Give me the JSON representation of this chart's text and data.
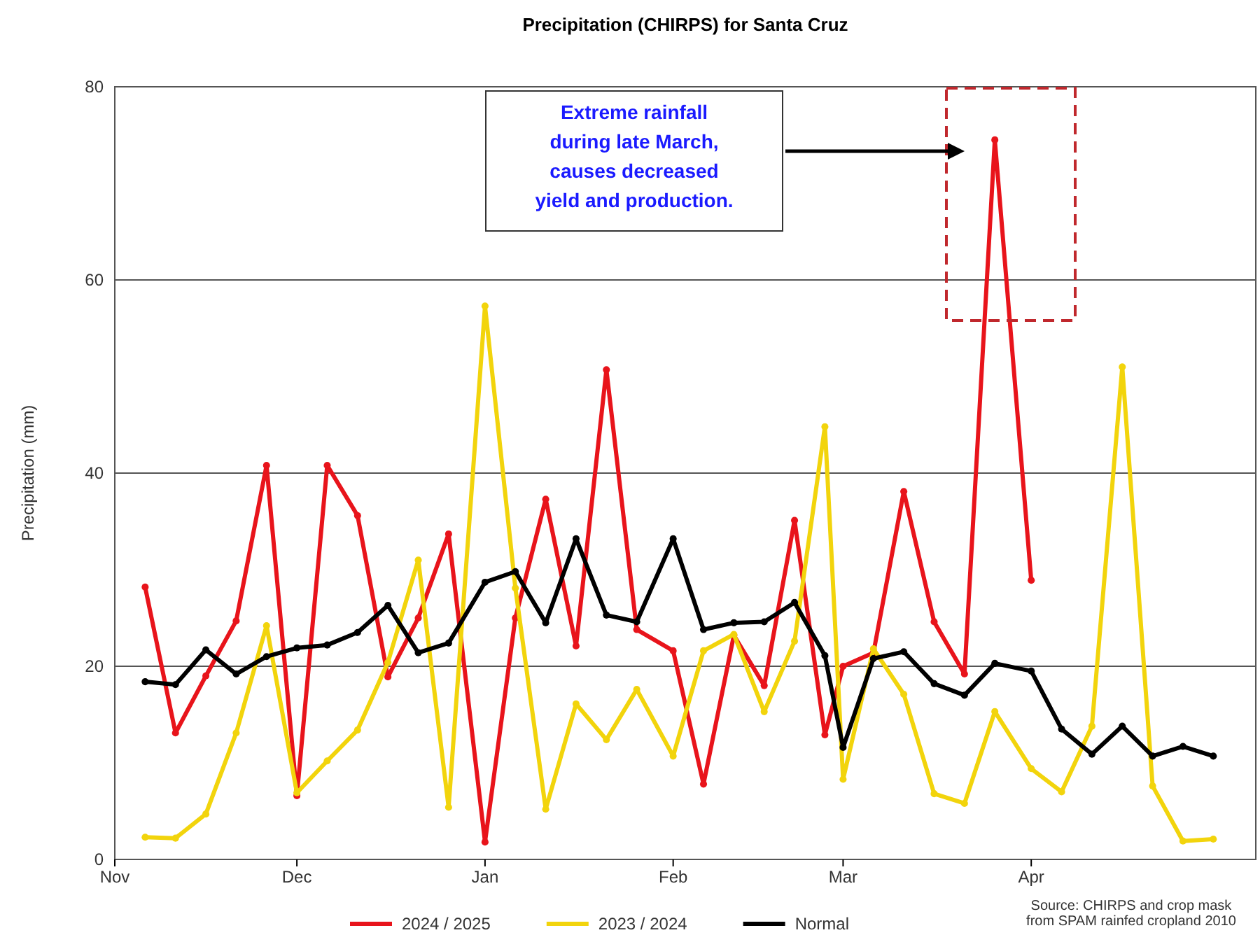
{
  "chart_data": {
    "type": "line",
    "title": "Precipitation (CHIRPS) for Santa Cruz",
    "ylabel": "Precipitation (mm)",
    "x": [
      "2024-11-06",
      "2024-11-11",
      "2024-11-16",
      "2024-11-21",
      "2024-11-26",
      "2024-12-01",
      "2024-12-06",
      "2024-12-11",
      "2024-12-16",
      "2024-12-21",
      "2024-12-26",
      "2025-01-01",
      "2025-01-06",
      "2025-01-11",
      "2025-01-16",
      "2025-01-21",
      "2025-01-26",
      "2025-02-01",
      "2025-02-06",
      "2025-02-11",
      "2025-02-16",
      "2025-02-21",
      "2025-02-26",
      "2025-03-01",
      "2025-03-06",
      "2025-03-11",
      "2025-03-16",
      "2025-03-21",
      "2025-03-26",
      "2025-04-01",
      "2025-04-06",
      "2025-04-11",
      "2025-04-16",
      "2025-04-21",
      "2025-04-26",
      "2025-05-01"
    ],
    "series": [
      {
        "name": "2024 / 2025",
        "color": "#e8141b",
        "values": [
          28.2,
          13.1,
          19,
          24.7,
          40.8,
          6.6,
          40.8,
          35.6,
          18.9,
          25,
          33.7,
          1.8,
          25,
          37.3,
          22.1,
          50.7,
          23.8,
          21.6,
          7.8,
          23.2,
          18.0,
          35.1,
          12.9,
          20.0,
          21.4,
          38.1,
          24.6,
          19.2,
          74.5,
          28.9,
          null,
          null,
          null,
          null,
          null,
          null
        ]
      },
      {
        "name": "2023 / 2024",
        "color": "#f2d40c",
        "values": [
          2.3,
          2.2,
          4.7,
          13.1,
          24.2,
          6.9,
          10.2,
          13.4,
          20.4,
          31.0,
          5.4,
          57.3,
          28.1,
          5.2,
          16.1,
          12.4,
          17.6,
          10.7,
          21.6,
          23.3,
          15.3,
          22.6,
          44.8,
          8.3,
          21.8,
          17.1,
          6.8,
          5.8,
          15.3,
          9.4,
          7.0,
          13.8,
          51.0,
          7.6,
          1.9,
          2.1
        ]
      },
      {
        "name": "Normal",
        "color": "#000000",
        "values": [
          18.4,
          18.1,
          21.7,
          19.2,
          21.0,
          21.9,
          22.2,
          23.5,
          26.3,
          21.4,
          22.4,
          28.7,
          29.8,
          24.5,
          33.2,
          25.3,
          24.6,
          33.2,
          23.8,
          24.5,
          24.6,
          26.6,
          21.1,
          11.6,
          20.8,
          21.5,
          18.2,
          17.0,
          20.3,
          19.5,
          13.5,
          10.9,
          13.8,
          10.7,
          11.7,
          10.7
        ]
      }
    ],
    "xlim": [
      "2024-11-01",
      "2025-05-08"
    ],
    "xticks": [
      {
        "value": "2024-11-01",
        "label": "Nov"
      },
      {
        "value": "2024-12-01",
        "label": "Dec"
      },
      {
        "value": "2025-01-01",
        "label": "Jan"
      },
      {
        "value": "2025-02-01",
        "label": "Feb"
      },
      {
        "value": "2025-03-01",
        "label": "Mar"
      },
      {
        "value": "2025-04-01",
        "label": "Apr"
      }
    ],
    "ylim": [
      0,
      80
    ],
    "yticks": [
      0,
      20,
      40,
      60,
      80
    ],
    "grid": "y",
    "legend": "bottom",
    "marker": "circle",
    "line_style": "solid",
    "annotations": [
      "Extreme rainfall during late March, causes decreased yield and production.",
      "Source: CHIRPS and crop mask from SPAM rainfed cropland 2010"
    ]
  }
}
